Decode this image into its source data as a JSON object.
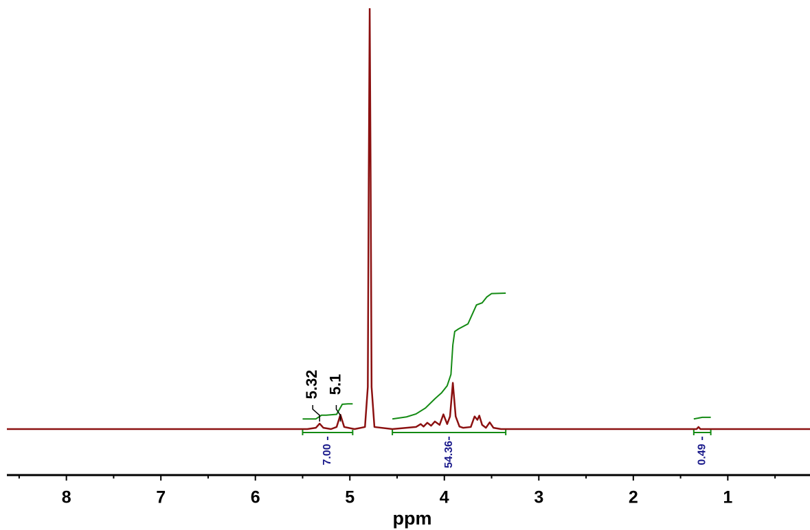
{
  "chart_data": {
    "type": "nmr",
    "x_label": "ppm",
    "xlim": [
      8.63,
      0.13
    ],
    "ylim": [
      0,
      100
    ],
    "xticks": [
      8,
      7,
      6,
      5,
      4,
      3,
      2,
      1
    ],
    "xminorticks": [
      8.5,
      7.5,
      6.5,
      5.5,
      4.5,
      3.5,
      2.5,
      1.5,
      0.5
    ],
    "spectrum": {
      "color": "#8b1010",
      "x": [
        8.63,
        5.45,
        5.36,
        5.32,
        5.28,
        5.2,
        5.14,
        5.1,
        5.06,
        4.95,
        4.84,
        4.81,
        4.8,
        4.79,
        4.78,
        4.77,
        4.74,
        4.55,
        4.4,
        4.3,
        4.25,
        4.22,
        4.18,
        4.14,
        4.1,
        4.05,
        4.01,
        3.97,
        3.94,
        3.91,
        3.88,
        3.84,
        3.8,
        3.72,
        3.68,
        3.65,
        3.63,
        3.6,
        3.56,
        3.52,
        3.48,
        3.4,
        1.33,
        1.31,
        1.29,
        0.13
      ],
      "y": [
        0,
        0,
        0.3,
        1.3,
        0.3,
        0,
        0.5,
        3.4,
        0.5,
        0,
        0.5,
        10,
        60,
        100,
        60,
        10,
        0.5,
        0,
        0.3,
        0.5,
        1.2,
        0.6,
        1.5,
        0.8,
        1.8,
        1,
        3.5,
        1.2,
        3,
        11,
        3,
        0.6,
        0.3,
        0.5,
        3,
        2.2,
        3.2,
        1,
        0.3,
        1.6,
        0.3,
        0,
        0,
        0.5,
        0,
        0
      ]
    },
    "integral_color": "#138a13",
    "integral_curves": [
      {
        "x": [
          5.5,
          5.36,
          5.3,
          5.25,
          5.14,
          5.08,
          5.02,
          4.97
        ],
        "y": [
          2.4,
          2.4,
          3.3,
          3.3,
          3.5,
          5.9,
          6,
          6
        ]
      },
      {
        "x": [
          4.55,
          4.4,
          4.3,
          4.2,
          4.1,
          4.03,
          3.97,
          3.93,
          3.91,
          3.89,
          3.85,
          3.75,
          3.7,
          3.66,
          3.6,
          3.55,
          3.5,
          3.35
        ],
        "y": [
          2.4,
          2.9,
          3.6,
          5,
          7.2,
          8.6,
          10.3,
          13,
          20,
          23.2,
          23.8,
          25,
          27.5,
          29.5,
          30,
          31.4,
          32.2,
          32.3
        ]
      },
      {
        "x": [
          1.36,
          1.27,
          1.18
        ],
        "y": [
          2.4,
          2.8,
          2.8
        ]
      }
    ],
    "integrals": {
      "ranges": [
        [
          5.5,
          4.97
        ],
        [
          4.55,
          3.35
        ],
        [
          1.36,
          1.18
        ]
      ],
      "values": [
        7,
        54.36,
        0.49
      ],
      "value_labels": [
        "7.00",
        "54.36",
        "0.49"
      ],
      "label_color": "#1c1c8c"
    },
    "peak_labels": [
      5.32,
      5.1
    ]
  }
}
